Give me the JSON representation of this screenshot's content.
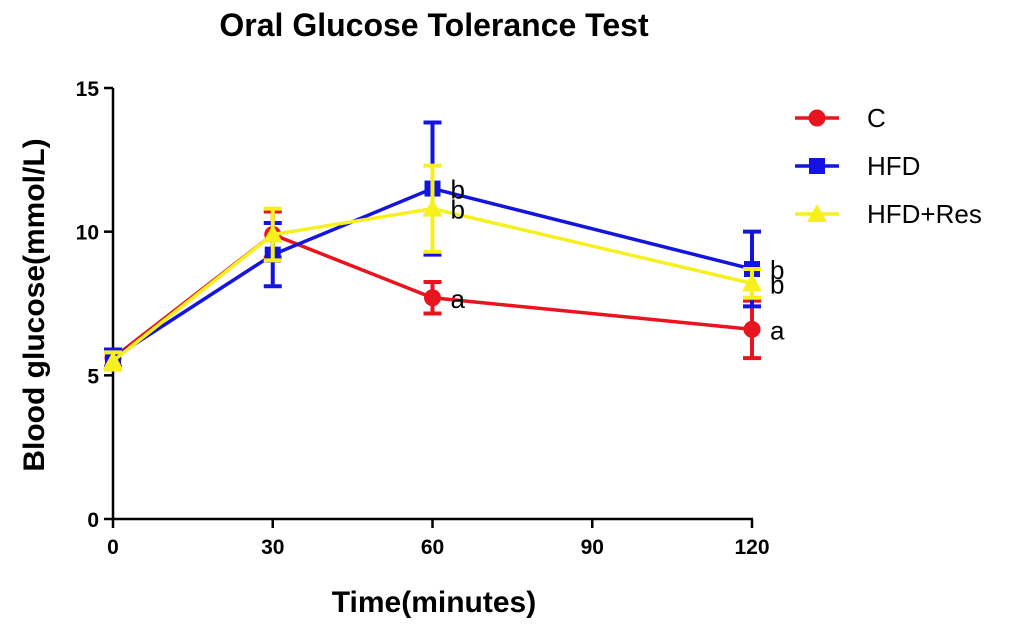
{
  "chart_data": {
    "type": "line",
    "title": "Oral Glucose Tolerance Test",
    "xlabel": "Time(minutes)",
    "ylabel": "Blood glucose(mmol/L)",
    "x": [
      0,
      30,
      60,
      120
    ],
    "xlim": [
      0,
      120
    ],
    "ylim": [
      0,
      15
    ],
    "xticks": [
      "0",
      "30",
      "60",
      "90",
      "120"
    ],
    "yticks": [
      "0",
      "5",
      "10",
      "15"
    ],
    "grid": false,
    "legend_position": "top-right",
    "series": [
      {
        "name": "C",
        "color": "#e8141e",
        "marker": "circle",
        "values": [
          5.6,
          9.9,
          7.7,
          6.6
        ],
        "errors": [
          0.3,
          0.8,
          0.55,
          1.0
        ],
        "annotations": [
          "",
          "",
          "a",
          "a"
        ]
      },
      {
        "name": "HFD",
        "color": "#1414e0",
        "marker": "square",
        "values": [
          5.6,
          9.2,
          11.5,
          8.7
        ],
        "errors": [
          0.3,
          1.1,
          2.3,
          1.3
        ],
        "annotations": [
          "",
          "",
          "b",
          "b"
        ]
      },
      {
        "name": "HFD+Res",
        "color": "#f5f01e",
        "marker": "triangle",
        "values": [
          5.5,
          9.9,
          10.8,
          8.2
        ],
        "errors": [
          0.3,
          0.9,
          1.5,
          0.5
        ],
        "annotations": [
          "",
          "",
          "b",
          "b"
        ]
      }
    ]
  }
}
